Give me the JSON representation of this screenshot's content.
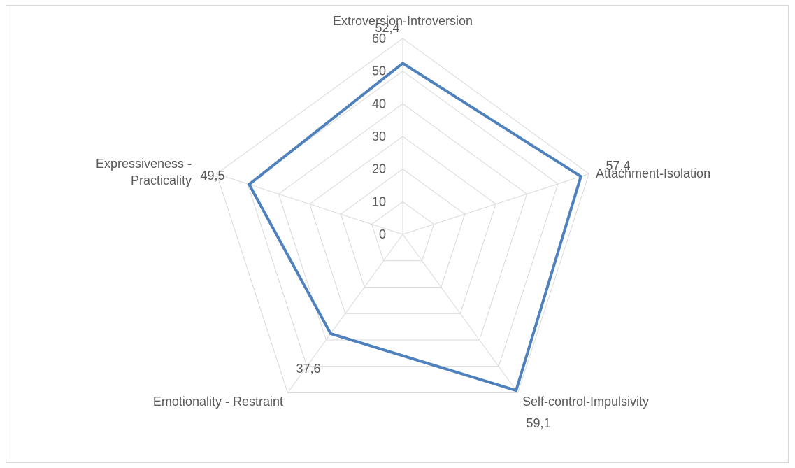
{
  "chart_data": {
    "type": "radar",
    "title": "",
    "categories": [
      "Extroversion-Introversion",
      "Attachment-Isolation",
      "Self-control-Impulsivity",
      "Emotionality - Restraint",
      "Expressiveness - Practicality"
    ],
    "category_lines": [
      [
        "Extroversion-Introversion"
      ],
      [
        "Attachment-Isolation"
      ],
      [
        "Self-control-Impulsivity"
      ],
      [
        "Emotionality - Restraint"
      ],
      [
        "Expressiveness -",
        "Practicality"
      ]
    ],
    "series": [
      {
        "values": [
          52.4,
          57.4,
          59.1,
          37.6,
          49.5
        ],
        "value_labels": [
          "52,4",
          "57,4",
          "59,1",
          "37,6",
          "49,5"
        ],
        "color": "#4f81bd"
      }
    ],
    "rlim": [
      0,
      60
    ],
    "ticks": [
      0,
      10,
      20,
      30,
      40,
      50,
      60
    ],
    "tick_labels": [
      "0",
      "10",
      "20",
      "30",
      "40",
      "50",
      "60"
    ],
    "grid": true,
    "legend": "none",
    "grid_color": "#d9d9d9",
    "text_color": "#595959"
  }
}
